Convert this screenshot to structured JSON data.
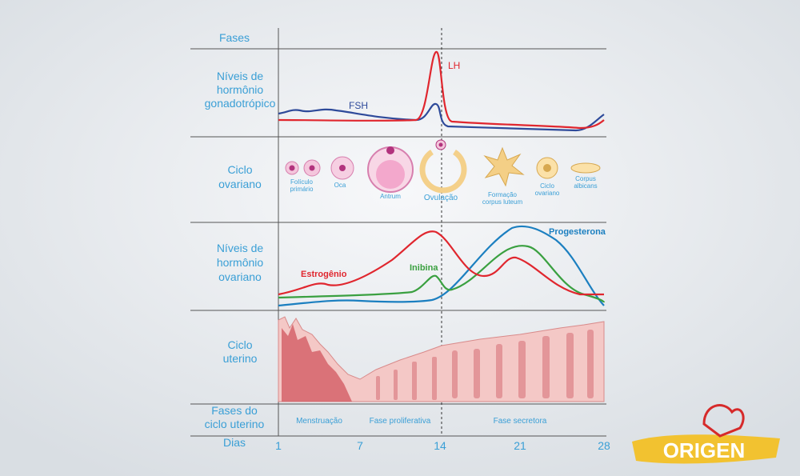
{
  "rows": [
    {
      "lines": [
        "Fases"
      ]
    },
    {
      "lines": [
        "Níveis de",
        "hormônio",
        "gonadotrópico"
      ]
    },
    {
      "lines": [
        "Ciclo",
        "ovariano"
      ]
    },
    {
      "lines": [
        "Níveis de",
        "hormônio",
        "ovariano"
      ]
    },
    {
      "lines": [
        "Ciclo",
        "uterino"
      ]
    },
    {
      "lines": [
        "Fases do",
        "ciclo uterino"
      ]
    },
    {
      "lines": [
        "Dias"
      ]
    }
  ],
  "curves": {
    "lh": "LH",
    "fsh": "FSH",
    "progesterone": "Progesterona",
    "estrogen": "Estrogênio",
    "inhibin": "Inibina"
  },
  "ovarian_stages": [
    {
      "lines": [
        "Folículo",
        "primário"
      ]
    },
    {
      "lines": [
        "Oca"
      ]
    },
    {
      "lines": [
        "Antrum"
      ]
    },
    {
      "lines": [
        "Ovulação"
      ]
    },
    {
      "lines": [
        "Formação",
        "corpus luteum"
      ]
    },
    {
      "lines": [
        "Ciclo",
        "ovariano"
      ]
    },
    {
      "lines": [
        "Corpus",
        "albicans"
      ]
    }
  ],
  "uterine_phases": [
    "Menstruação",
    "Fase proliferativa",
    "Fase secretora"
  ],
  "days": [
    "1",
    "7",
    "14",
    "21",
    "28"
  ],
  "logo": "ORIGEN"
}
